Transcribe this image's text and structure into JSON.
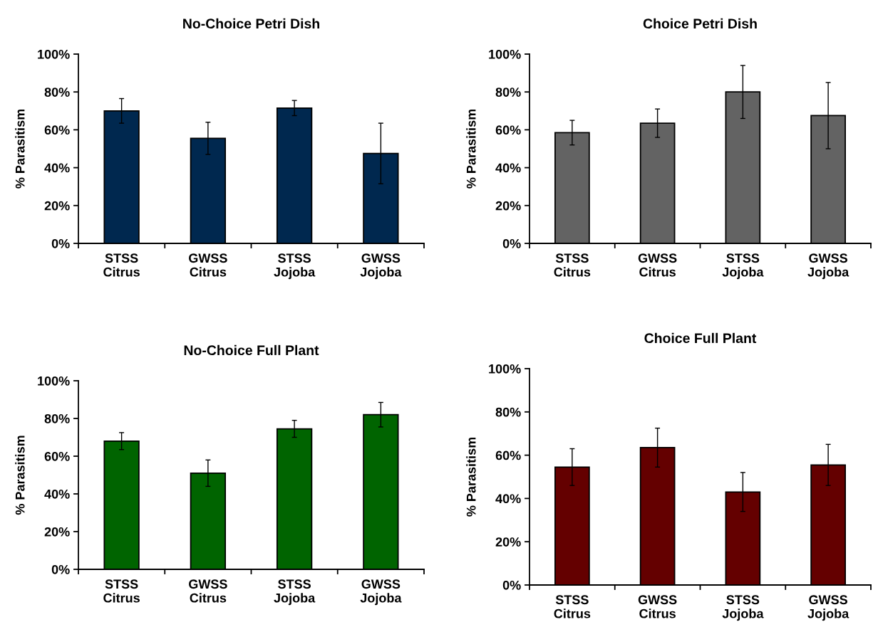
{
  "chart_data": [
    {
      "type": "bar",
      "title": "No-Choice Petri Dish",
      "ylabel": "% Parasitism",
      "categories": [
        "STSS\nCitrus",
        "GWSS\nCitrus",
        "STSS\nJojoba",
        "GWSS\nJojoba"
      ],
      "values": [
        70,
        55.5,
        71.5,
        47.5
      ],
      "errors": [
        6.5,
        8.5,
        4,
        16
      ],
      "color": "#00284f",
      "ylim": [
        0,
        100
      ],
      "yticks": [
        {
          "value": 0,
          "label": "0%"
        },
        {
          "value": 20,
          "label": "20%"
        },
        {
          "value": 40,
          "label": "40%"
        },
        {
          "value": 60,
          "label": "60%"
        },
        {
          "value": 80,
          "label": "80%"
        },
        {
          "value": 100,
          "label": "100%"
        }
      ],
      "grid": false,
      "legend": false
    },
    {
      "type": "bar",
      "title": "Choice Petri Dish",
      "ylabel": "% Parasitism",
      "categories": [
        "STSS\nCitrus",
        "GWSS\nCitrus",
        "STSS\nJojoba",
        "GWSS\nJojoba"
      ],
      "values": [
        58.5,
        63.5,
        80,
        67.5
      ],
      "errors": [
        6.5,
        7.5,
        14,
        17.5
      ],
      "color": "#636363",
      "ylim": [
        0,
        100
      ],
      "yticks": [
        {
          "value": 0,
          "label": "0%"
        },
        {
          "value": 20,
          "label": "20%"
        },
        {
          "value": 40,
          "label": "40%"
        },
        {
          "value": 60,
          "label": "60%"
        },
        {
          "value": 80,
          "label": "80%"
        },
        {
          "value": 100,
          "label": "100%"
        }
      ],
      "grid": false,
      "legend": false
    },
    {
      "type": "bar",
      "title": "No-Choice Full Plant",
      "ylabel": "% Parasitism",
      "categories": [
        "STSS\nCitrus",
        "GWSS\nCitrus",
        "STSS\nJojoba",
        "GWSS\nJojoba"
      ],
      "values": [
        68,
        51,
        74.5,
        82
      ],
      "errors": [
        4.5,
        7,
        4.5,
        6.5
      ],
      "color": "#006400",
      "ylim": [
        0,
        100
      ],
      "yticks": [
        {
          "value": 0,
          "label": "0%"
        },
        {
          "value": 20,
          "label": "20%"
        },
        {
          "value": 40,
          "label": "40%"
        },
        {
          "value": 60,
          "label": "60%"
        },
        {
          "value": 80,
          "label": "80%"
        },
        {
          "value": 100,
          "label": "100%"
        }
      ],
      "grid": false,
      "legend": false
    },
    {
      "type": "bar",
      "title": "Choice Full Plant",
      "ylabel": "% Parasitism",
      "categories": [
        "STSS\nCitrus",
        "GWSS\nCitrus",
        "STSS\nJojoba",
        "GWSS\nJojoba"
      ],
      "values": [
        54.5,
        63.5,
        43,
        55.5
      ],
      "errors": [
        8.5,
        9,
        9,
        9.5
      ],
      "color": "#640000",
      "ylim": [
        0,
        100
      ],
      "yticks": [
        {
          "value": 0,
          "label": "0%"
        },
        {
          "value": 20,
          "label": "20%"
        },
        {
          "value": 40,
          "label": "40%"
        },
        {
          "value": 60,
          "label": "60%"
        },
        {
          "value": 80,
          "label": "80%"
        },
        {
          "value": 100,
          "label": "100%"
        }
      ],
      "grid": false,
      "legend": false
    }
  ]
}
